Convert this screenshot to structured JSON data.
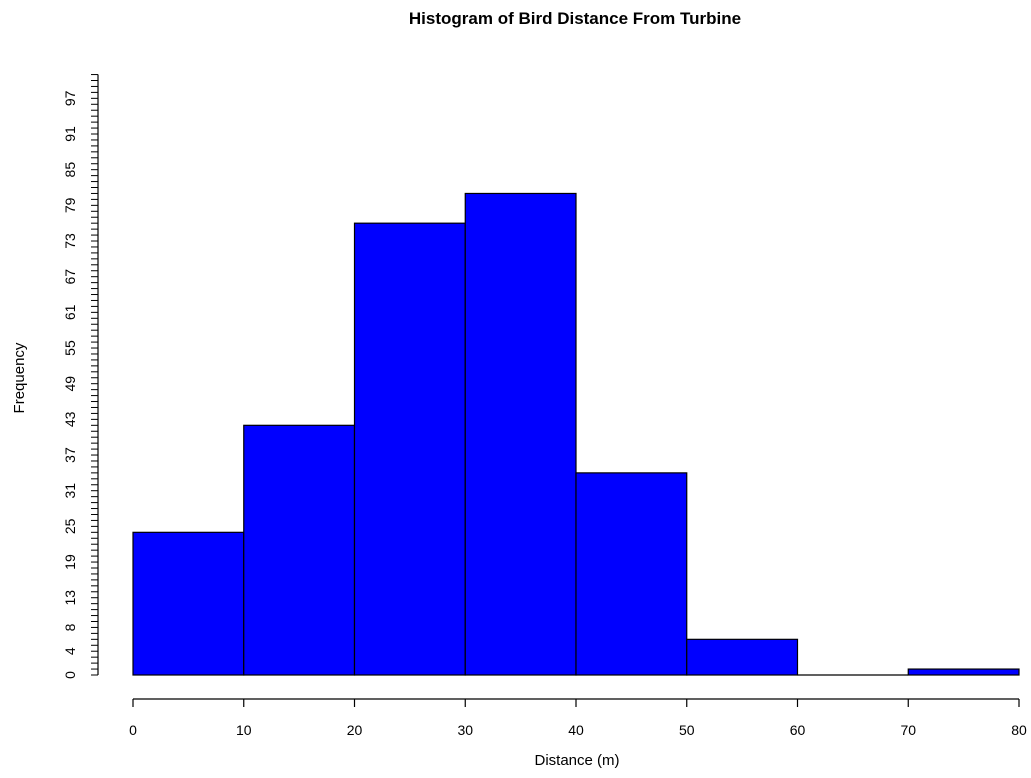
{
  "chart_data": {
    "type": "bar",
    "title": "Histogram of Bird Distance From Turbine",
    "xlabel": "Distance (m)",
    "ylabel": "Frequency",
    "bins": [
      {
        "start": 0,
        "end": 10,
        "count": 24
      },
      {
        "start": 10,
        "end": 20,
        "count": 42
      },
      {
        "start": 20,
        "end": 30,
        "count": 76
      },
      {
        "start": 30,
        "end": 40,
        "count": 81
      },
      {
        "start": 40,
        "end": 50,
        "count": 34
      },
      {
        "start": 50,
        "end": 60,
        "count": 6
      },
      {
        "start": 60,
        "end": 70,
        "count": 0
      },
      {
        "start": 70,
        "end": 80,
        "count": 1
      }
    ],
    "xlim": [
      0,
      80
    ],
    "ylim": [
      0,
      100
    ],
    "x_ticks": [
      "0",
      "10",
      "20",
      "30",
      "40",
      "50",
      "60",
      "70",
      "80"
    ],
    "y_tick_labels": [
      "0",
      "4",
      "8",
      "13",
      "19",
      "25",
      "31",
      "37",
      "43",
      "49",
      "55",
      "61",
      "67",
      "73",
      "79",
      "85",
      "91",
      "97"
    ],
    "bar_color": "#0000ff",
    "bar_edge_color": "#000000",
    "grid": false,
    "legend": "none"
  }
}
